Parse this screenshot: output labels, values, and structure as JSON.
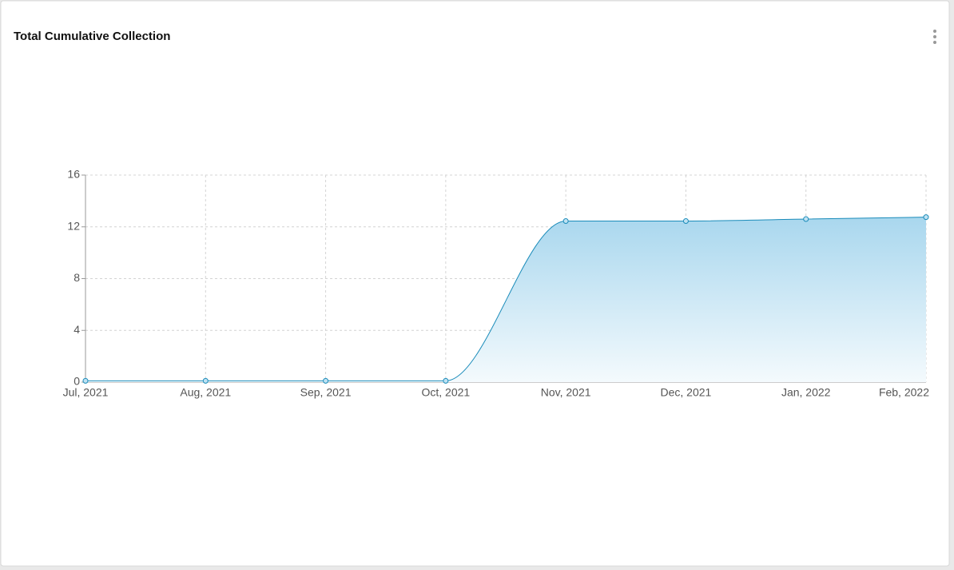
{
  "chart_data": {
    "type": "line",
    "title": "Total Cumulative Collection",
    "categories": [
      "Jul, 2021",
      "Aug, 2021",
      "Sep, 2021",
      "Oct, 2021",
      "Nov, 2021",
      "Dec, 2021",
      "Jan, 2022",
      "Feb, 2022"
    ],
    "values": [
      0.1,
      0.1,
      0.1,
      0.1,
      12.45,
      12.45,
      12.6,
      12.75
    ],
    "color": "#1b8cba",
    "ylim": [
      0,
      16
    ],
    "yticks": [
      0,
      4,
      8,
      12,
      16
    ],
    "grid": true
  }
}
